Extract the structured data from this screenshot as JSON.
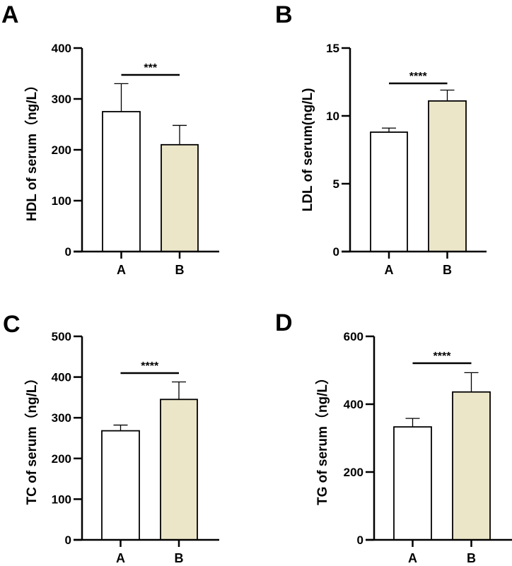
{
  "chart_data": [
    {
      "type": "bar",
      "panel": "A",
      "ylabel": "HDL of serum（ng/L）",
      "categories": [
        "A",
        "B"
      ],
      "values": [
        275,
        210
      ],
      "error_upper": [
        330,
        248
      ],
      "ylim": [
        0,
        400
      ],
      "yticks": [
        0,
        100,
        200,
        300,
        400
      ],
      "significance": "***",
      "bar_colors": [
        "#ffffff",
        "#ece6c9"
      ]
    },
    {
      "type": "bar",
      "panel": "B",
      "ylabel": "LDL of serum(ng/L)",
      "categories": [
        "A",
        "B"
      ],
      "values": [
        8.8,
        11.1
      ],
      "error_upper": [
        9.1,
        11.9
      ],
      "ylim": [
        0,
        15
      ],
      "yticks": [
        0,
        5,
        10,
        15
      ],
      "significance": "****",
      "bar_colors": [
        "#ffffff",
        "#ece6c9"
      ]
    },
    {
      "type": "bar",
      "panel": "C",
      "ylabel": "TC of serum（ng/L）",
      "categories": [
        "A",
        "B"
      ],
      "values": [
        268,
        345
      ],
      "error_upper": [
        282,
        388
      ],
      "ylim": [
        0,
        500
      ],
      "yticks": [
        0,
        100,
        200,
        300,
        400,
        500
      ],
      "significance": "****",
      "bar_colors": [
        "#ffffff",
        "#ece6c9"
      ]
    },
    {
      "type": "bar",
      "panel": "D",
      "ylabel": "TG of serum（ng/L）",
      "categories": [
        "A",
        "B"
      ],
      "values": [
        333,
        436
      ],
      "error_upper": [
        358,
        493
      ],
      "ylim": [
        0,
        600
      ],
      "yticks": [
        0,
        200,
        400,
        600
      ],
      "significance": "****",
      "bar_colors": [
        "#ffffff",
        "#ece6c9"
      ]
    }
  ]
}
